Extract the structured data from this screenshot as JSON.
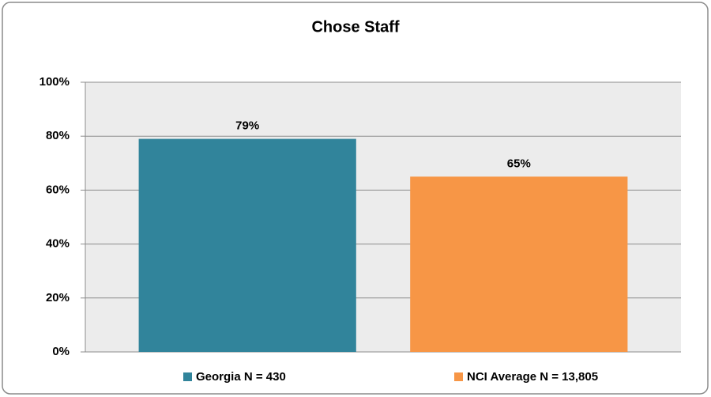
{
  "chart_data": {
    "type": "bar",
    "title": "Chose Staff",
    "series": [
      {
        "name": "Georgia N = 430",
        "color": "#31849b",
        "values": [
          79
        ],
        "value_labels": [
          "79%"
        ]
      },
      {
        "name": "NCI Average N = 13,805",
        "color": "#f79646",
        "values": [
          65
        ],
        "value_labels": [
          "65%"
        ]
      }
    ],
    "ylim": [
      0,
      100
    ],
    "yticks": [
      {
        "value": 0,
        "label": "0%"
      },
      {
        "value": 20,
        "label": "20%"
      },
      {
        "value": 40,
        "label": "40%"
      },
      {
        "value": 60,
        "label": "60%"
      },
      {
        "value": 80,
        "label": "80%"
      },
      {
        "value": 100,
        "label": "100%"
      }
    ],
    "grid": true,
    "legend": "bottom"
  }
}
